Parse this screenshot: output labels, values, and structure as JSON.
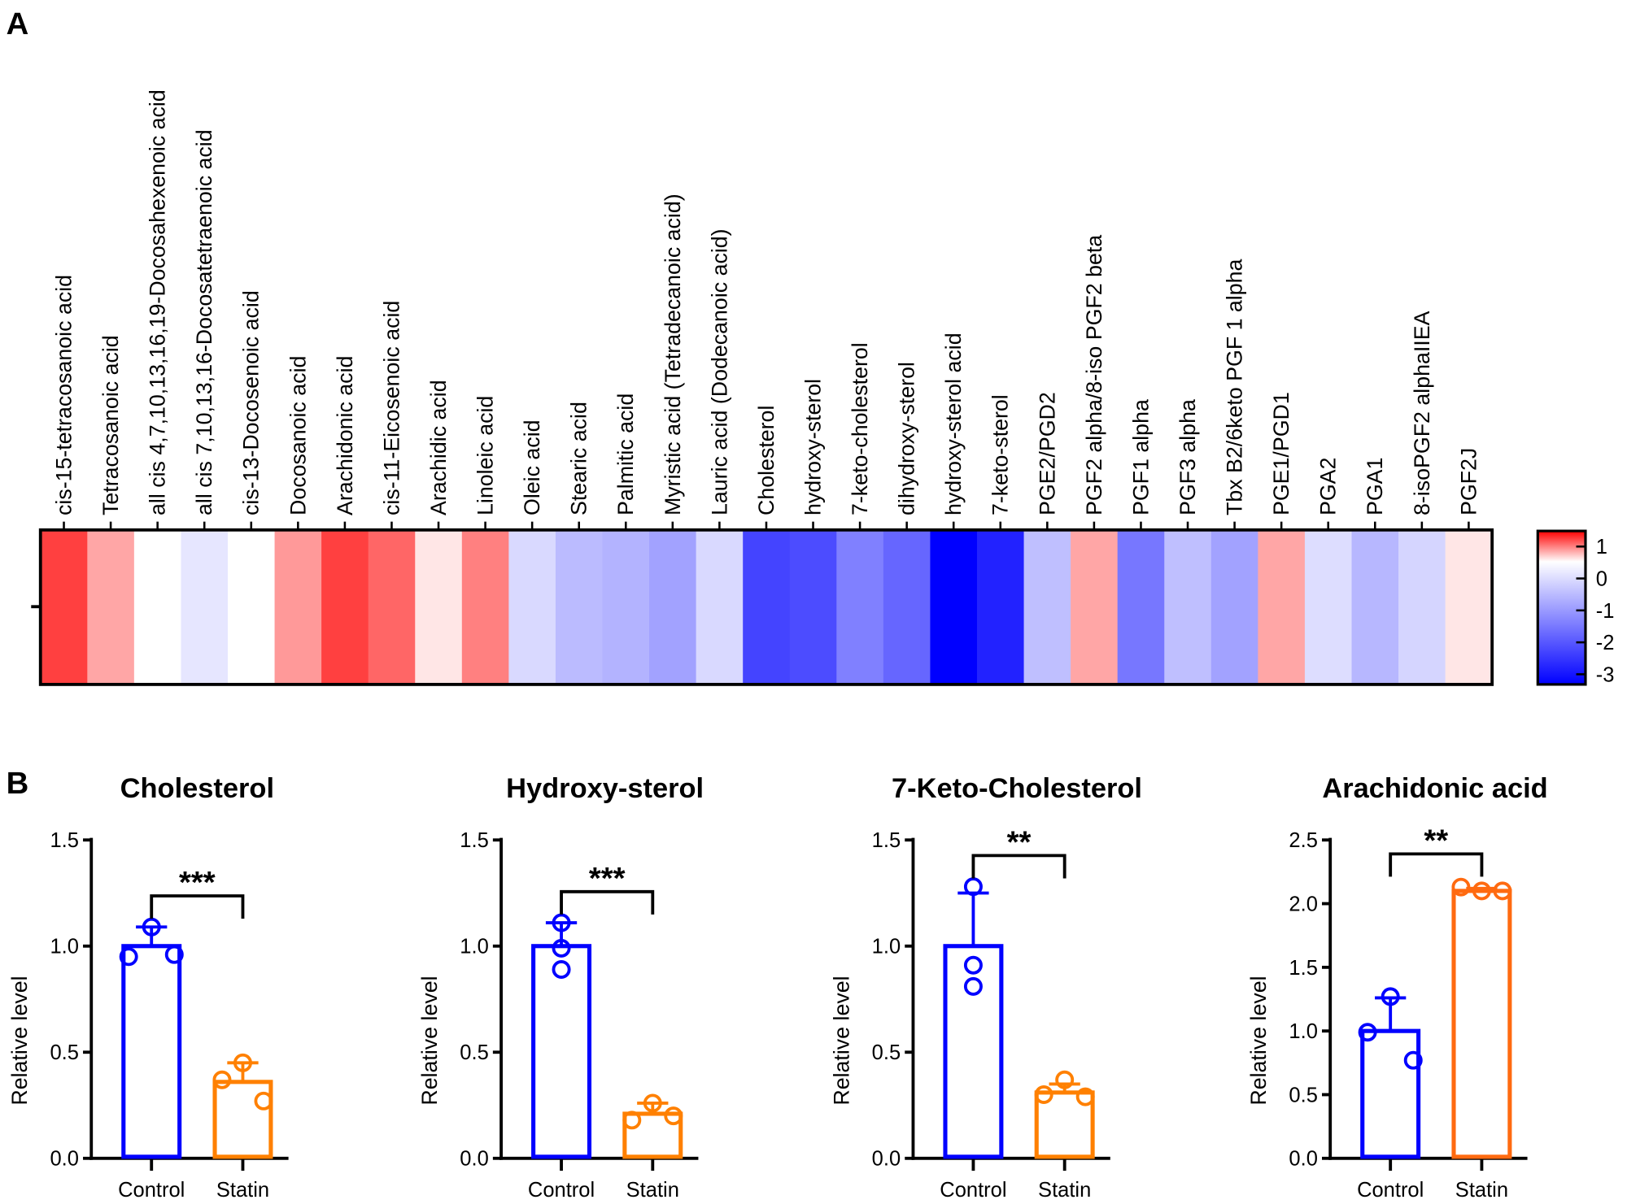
{
  "panels": {
    "a": "A",
    "b": "B"
  },
  "chart_data": [
    {
      "type": "heatmap",
      "colorscale": {
        "min": -3,
        "max": 1,
        "low_color": "#0000ff",
        "mid_color": "#ffffff",
        "high_color": "#ff0000",
        "ticks": [
          "1",
          "0",
          "-1",
          "-2",
          "-3"
        ]
      },
      "columns": [
        "cis-15-tetracosanoic acid",
        "Tetracosanoic acid",
        "all cis 4,7,10,13,16,19-Docosahexenoic acid",
        "all cis 7,10,13,16-Docosatetraenoic acid",
        "cis-13-Docosenoic acid",
        "Docosanoic acid",
        "Arachidonic acid",
        "cis-11-Eicosenoic acid",
        "Arachidic acid",
        "Linoleic acid",
        "Oleic acid",
        "Stearic acid",
        "Palmitic acid",
        "Myristic acid (Tetradecanoic acid)",
        "Lauric acid (Dodecanoic acid)",
        "Cholesterol",
        "hydroxy-sterol",
        "7-keto-cholesterol",
        "dihydroxy-sterol",
        "hydroxy-sterol  acid",
        "7-keto-sterol",
        "PGE2/PGD2",
        "PGF2 alpha/8-iso PGF2 beta",
        "PGF1 alpha",
        "PGF3 alpha",
        "Tbx B2/6keto PGF 1 alpha",
        "PGE1/PGD1",
        "PGA2",
        "PGA1",
        "8-isoPGF2 alphaIIEA",
        "PGF2J"
      ],
      "values": [
        0.75,
        0.35,
        0,
        -0.3,
        0,
        0.4,
        0.75,
        0.6,
        0.1,
        0.5,
        -0.45,
        -0.8,
        -0.9,
        -1.1,
        -0.45,
        -2.2,
        -2.1,
        -1.5,
        -1.8,
        -3,
        -2.6,
        -0.75,
        0.35,
        -1.6,
        -0.75,
        -1.1,
        0.35,
        -0.4,
        -0.85,
        -0.5,
        0.1
      ]
    },
    {
      "type": "bar",
      "title": "Cholesterol",
      "ylabel": "Relative level",
      "ylim": [
        0,
        1.5
      ],
      "yticks": [
        "0.0",
        "0.5",
        "1.0",
        "1.5"
      ],
      "categories": [
        "Control",
        "Statin"
      ],
      "colors": [
        "#0000ff",
        "#ff8000"
      ],
      "means": [
        1.0,
        0.36
      ],
      "sd_upper": [
        1.09,
        0.45
      ],
      "points": [
        [
          1.09,
          0.95,
          0.96
        ],
        [
          0.45,
          0.37,
          0.27
        ]
      ],
      "significance": "***"
    },
    {
      "type": "bar",
      "title": "Hydroxy-sterol",
      "ylabel": "Relative level",
      "ylim": [
        0,
        1.5
      ],
      "yticks": [
        "0.0",
        "0.5",
        "1.0",
        "1.5"
      ],
      "categories": [
        "Control",
        "Statin"
      ],
      "colors": [
        "#0000ff",
        "#ff8000"
      ],
      "means": [
        1.0,
        0.21
      ],
      "sd_upper": [
        1.11,
        0.26
      ],
      "points": [
        [
          1.11,
          0.99,
          0.89
        ],
        [
          0.26,
          0.18,
          0.2
        ]
      ],
      "significance": "***"
    },
    {
      "type": "bar",
      "title": "7-Keto-Cholesterol",
      "ylabel": "Relative level",
      "ylim": [
        0,
        1.5
      ],
      "yticks": [
        "0.0",
        "0.5",
        "1.0",
        "1.5"
      ],
      "categories": [
        "Control",
        "Statin"
      ],
      "colors": [
        "#0000ff",
        "#ff8000"
      ],
      "means": [
        1.0,
        0.31
      ],
      "sd_upper": [
        1.25,
        0.35
      ],
      "points": [
        [
          1.28,
          0.91,
          0.81
        ],
        [
          0.37,
          0.3,
          0.29
        ]
      ],
      "significance": "**"
    },
    {
      "type": "bar",
      "title": "Arachidonic acid",
      "ylabel": "Relative level",
      "ylim": [
        0,
        2.5
      ],
      "yticks": [
        "0.0",
        "0.5",
        "1.0",
        "1.5",
        "2.0",
        "2.5"
      ],
      "categories": [
        "Control",
        "Statin"
      ],
      "colors": [
        "#0000ff",
        "#ff6a10"
      ],
      "means": [
        1.0,
        2.1
      ],
      "sd_upper": [
        1.26,
        2.12
      ],
      "points": [
        [
          1.27,
          0.99,
          0.77
        ],
        [
          2.1,
          2.13,
          2.1
        ]
      ],
      "significance": "**"
    }
  ]
}
